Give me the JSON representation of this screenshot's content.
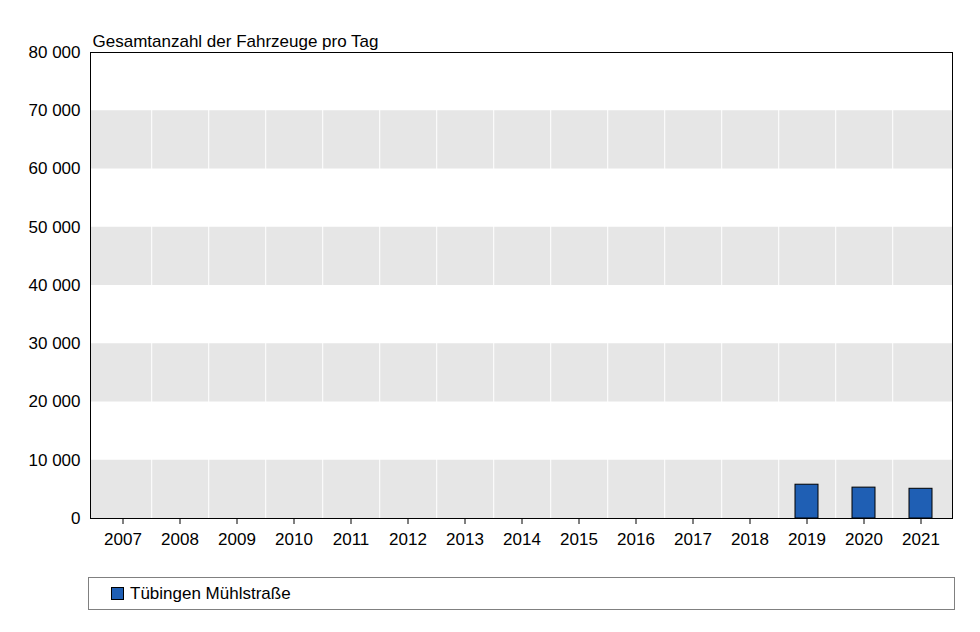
{
  "chart_data": {
    "type": "bar",
    "title": "Gesamtanzahl der Fahrzeuge pro Tag",
    "categories": [
      "2007",
      "2008",
      "2009",
      "2010",
      "2011",
      "2012",
      "2013",
      "2014",
      "2015",
      "2016",
      "2017",
      "2018",
      "2019",
      "2020",
      "2021"
    ],
    "series": [
      {
        "name": "Tübingen Mühlstraße",
        "color": "#1f5fb4",
        "values": [
          null,
          null,
          null,
          null,
          null,
          null,
          null,
          null,
          null,
          null,
          null,
          null,
          5800,
          5300,
          5100
        ]
      }
    ],
    "ylim": [
      0,
      80000
    ],
    "yticks": [
      0,
      {
        "value": 10000,
        "label": "10 000"
      },
      {
        "value": 20000,
        "label": "20 000"
      },
      {
        "value": 30000,
        "label": "30 000"
      },
      {
        "value": 40000,
        "label": "40 000"
      },
      {
        "value": 50000,
        "label": "50 000"
      },
      {
        "value": 60000,
        "label": "60 000"
      },
      {
        "value": 70000,
        "label": "70 000"
      },
      {
        "value": 80000,
        "label": "80 000"
      }
    ],
    "grid": true,
    "legend": "bottom"
  }
}
